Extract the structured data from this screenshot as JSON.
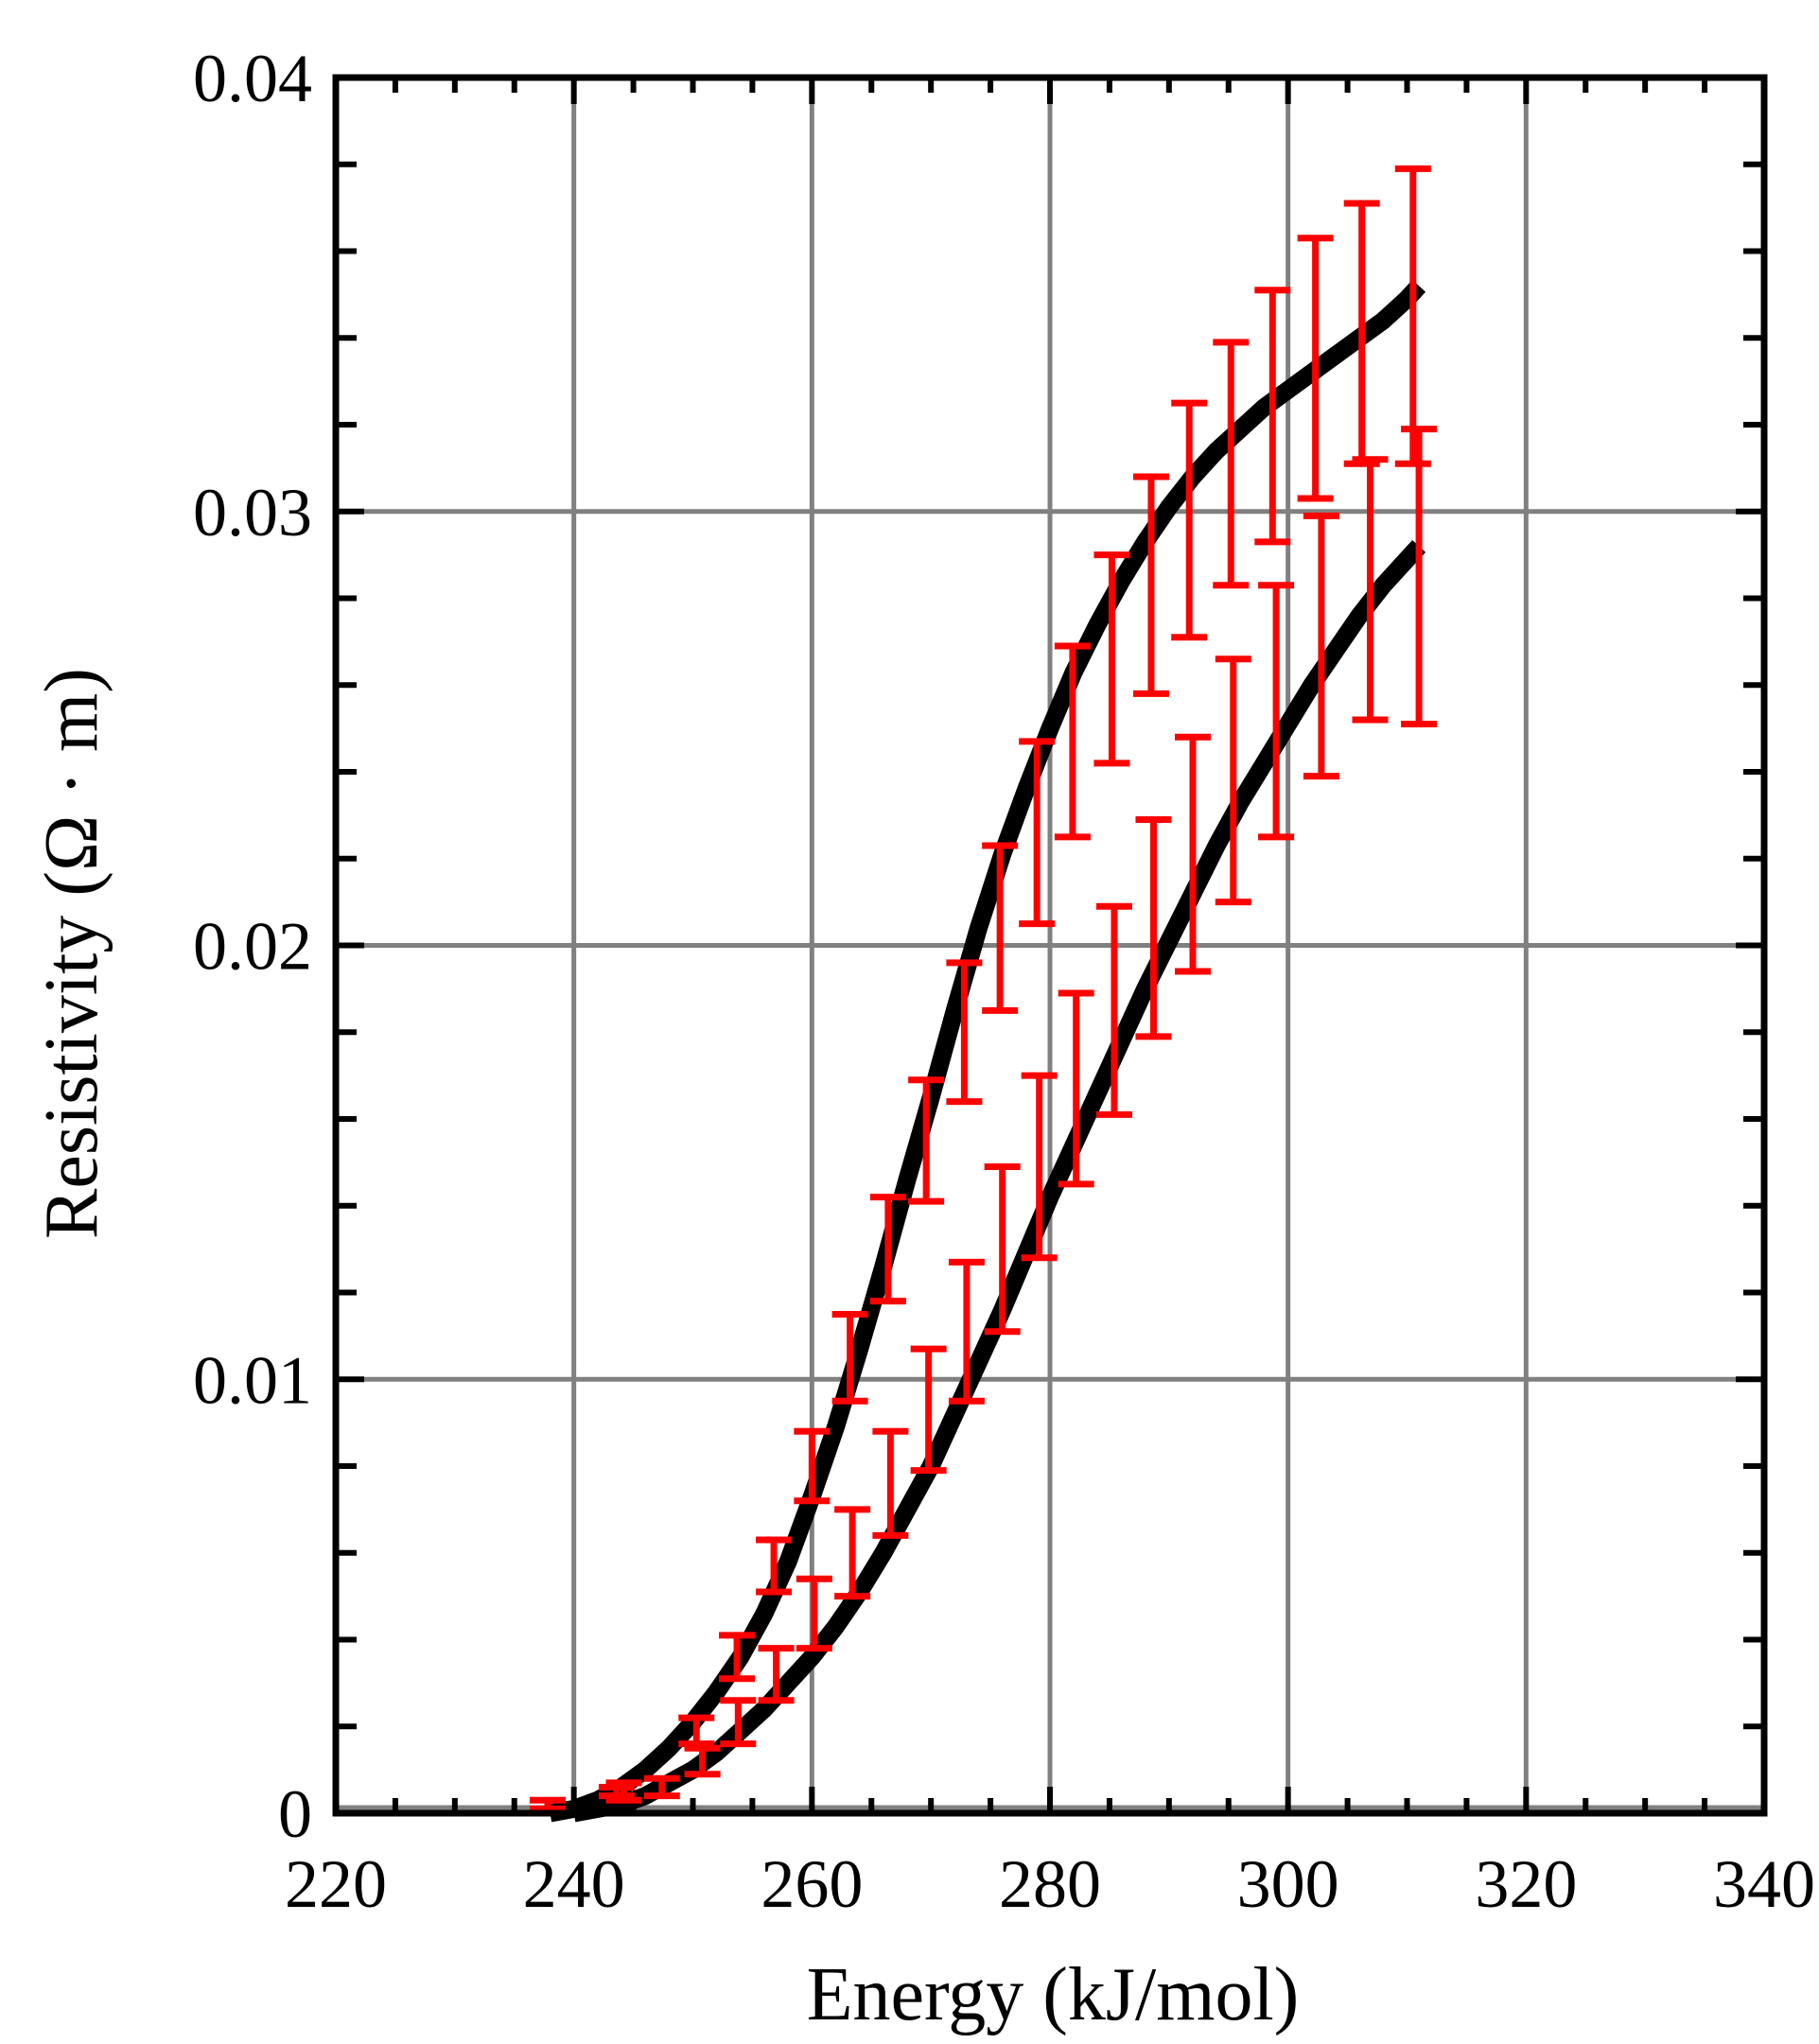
{
  "chart_data": {
    "type": "line",
    "title": "",
    "xlabel": "Energy (kJ/mol)",
    "ylabel": "Resistivity (Ω · m)",
    "xlim": [
      220,
      340
    ],
    "ylim": [
      0,
      0.04
    ],
    "grid": true,
    "x_ticks": [
      220,
      240,
      260,
      280,
      300,
      320,
      340
    ],
    "x_tick_labels": [
      "220",
      "240",
      "260",
      "280",
      "300",
      "320",
      "340"
    ],
    "y_ticks": [
      0,
      0.01,
      0.02,
      0.03,
      0.04
    ],
    "y_tick_labels": [
      "0",
      "0.01",
      "0.02",
      "0.03",
      "0.04"
    ],
    "colors": {
      "line": "#000000",
      "errorbar": "#ff0000",
      "grid": "#808080"
    },
    "series": [
      {
        "curve": {
          "x": [
            238,
            240,
            242,
            244,
            246,
            248,
            250,
            252,
            254,
            256,
            258,
            260,
            262,
            264,
            266,
            268,
            270,
            272,
            274,
            276,
            278,
            280,
            282,
            284,
            286,
            288,
            290,
            292,
            294,
            296,
            298,
            300,
            302,
            304,
            306,
            308,
            310,
            311
          ],
          "y": [
            0,
            0.0001,
            0.0003,
            0.0006,
            0.001,
            0.0015,
            0.0021,
            0.0028,
            0.0036,
            0.0046,
            0.0058,
            0.0073,
            0.0089,
            0.0107,
            0.0126,
            0.0146,
            0.0165,
            0.0185,
            0.0204,
            0.0221,
            0.0236,
            0.025,
            0.0263,
            0.0274,
            0.0284,
            0.0293,
            0.0301,
            0.0308,
            0.0314,
            0.0319,
            0.0324,
            0.0328,
            0.0332,
            0.0336,
            0.034,
            0.0344,
            0.0349,
            0.0352
          ]
        },
        "errorbars": {
          "x": [
            237.8,
            244.2,
            250.3,
            253.7,
            256.8,
            260,
            263.2,
            266.4,
            269.6,
            272.8,
            275.8,
            278.9,
            281.9,
            285.2,
            288.5,
            291.7,
            295.2,
            298.7,
            302.3,
            306.2,
            310.5
          ],
          "y": [
            0.0002,
            0.0005,
            0.0019,
            0.0036,
            0.0057,
            0.008,
            0.0105,
            0.013,
            0.0155,
            0.018,
            0.0204,
            0.0226,
            0.0247,
            0.0266,
            0.0283,
            0.0298,
            0.0311,
            0.0322,
            0.0333,
            0.0341,
            0.0345
          ],
          "err": [
            0.0001,
            0.0002,
            0.0003,
            0.0005,
            0.0006,
            0.0008,
            0.001,
            0.0012,
            0.0014,
            0.0016,
            0.0019,
            0.0021,
            0.0022,
            0.0024,
            0.0025,
            0.0027,
            0.0028,
            0.0029,
            0.003,
            0.003,
            0.0034
          ]
        }
      },
      {
        "curve": {
          "x": [
            240,
            242,
            244,
            246,
            248,
            250,
            252,
            254,
            256,
            258,
            260,
            262,
            264,
            266,
            268,
            270,
            272,
            274,
            276,
            278,
            280,
            282,
            284,
            286,
            288,
            290,
            292,
            294,
            296,
            298,
            300,
            302,
            304,
            306,
            308,
            310,
            311
          ],
          "y": [
            0,
            0.0001,
            0.0002,
            0.0004,
            0.0007,
            0.001,
            0.0014,
            0.0019,
            0.0024,
            0.003,
            0.0036,
            0.0043,
            0.0051,
            0.006,
            0.007,
            0.008,
            0.0092,
            0.0104,
            0.0116,
            0.0129,
            0.0142,
            0.0154,
            0.0166,
            0.0178,
            0.019,
            0.0201,
            0.0212,
            0.0223,
            0.0233,
            0.0242,
            0.0251,
            0.026,
            0.0268,
            0.0276,
            0.0283,
            0.0289,
            0.0292
          ]
        },
        "errorbars": {
          "x": [
            243.6,
            247.4,
            250.8,
            253.8,
            257,
            260.2,
            263.4,
            266.6,
            269.8,
            273,
            276,
            279.1,
            282.2,
            285.4,
            288.7,
            292,
            295.4,
            299,
            302.8,
            306.9,
            311
          ],
          "y": [
            0.0005,
            0.0006,
            0.0012,
            0.0021,
            0.0032,
            0.0046,
            0.006,
            0.0076,
            0.0093,
            0.0111,
            0.013,
            0.0149,
            0.0167,
            0.0185,
            0.0204,
            0.0221,
            0.0238,
            0.0254,
            0.0269,
            0.0282,
            0.0285
          ]
        }
      }
    ]
  }
}
